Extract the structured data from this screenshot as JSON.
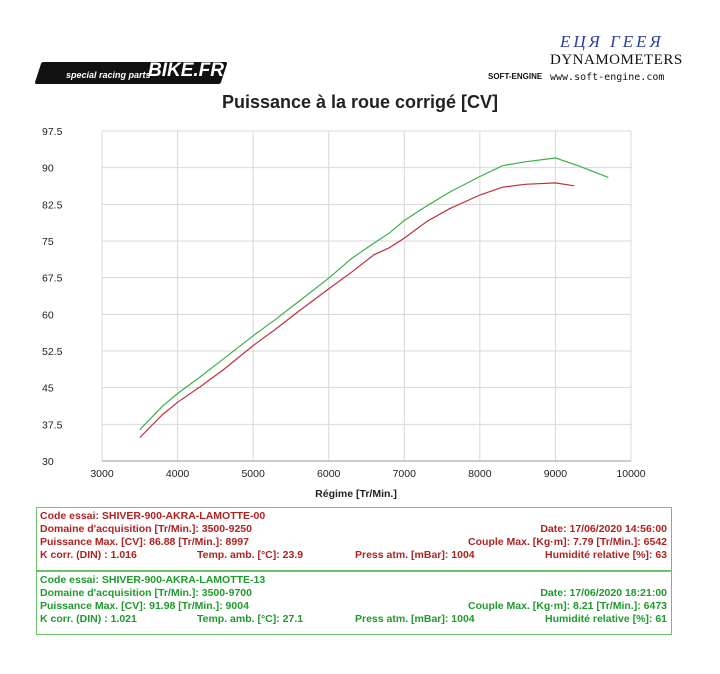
{
  "header": {
    "left_logo_brand": "BIKE.FR",
    "left_logo_tagline": "special racing parts",
    "right_logo_top": "ЕЦЯ ГЕЕЯ",
    "right_logo_name": "DYNAMOMETERS",
    "right_logo_url": "www.soft-engine.com",
    "right_logo_small": "SOFT-ENGINE"
  },
  "chart_data": {
    "type": "line",
    "title": "Puissance à la roue corrigé [CV]",
    "xlabel": "Régime [Tr/Min.]",
    "ylabel": "",
    "xlim": [
      3000,
      10000
    ],
    "ylim": [
      30,
      97.5
    ],
    "xticks": [
      3000,
      4000,
      5000,
      6000,
      7000,
      8000,
      9000,
      10000
    ],
    "yticks": [
      30,
      37.5,
      45,
      52.5,
      60,
      67.5,
      75,
      82.5,
      90,
      97.5
    ],
    "grid": true,
    "series": [
      {
        "color": "#c0303a",
        "x": [
          3500,
          3800,
          4000,
          4300,
          4600,
          5000,
          5300,
          5600,
          6000,
          6300,
          6600,
          6800,
          7000,
          7300,
          7600,
          8000,
          8300,
          8600,
          8997,
          9250
        ],
        "y": [
          34.8,
          39.5,
          42.0,
          45.2,
          48.6,
          53.6,
          57.0,
          60.6,
          65.2,
          68.6,
          72.2,
          73.6,
          75.6,
          79.0,
          81.6,
          84.4,
          86.0,
          86.6,
          86.88,
          86.3
        ]
      },
      {
        "color": "#3cb04a",
        "x": [
          3500,
          3800,
          4000,
          4300,
          4600,
          5000,
          5300,
          5600,
          6000,
          6300,
          6600,
          6800,
          7000,
          7300,
          7600,
          8000,
          8300,
          8600,
          9004,
          9300,
          9700
        ],
        "y": [
          36.4,
          41.2,
          43.8,
          47.2,
          50.8,
          55.6,
          59.0,
          62.6,
          67.4,
          71.4,
          74.6,
          76.6,
          79.2,
          82.2,
          85.0,
          88.2,
          90.4,
          91.2,
          91.98,
          90.4,
          88.0
        ]
      }
    ]
  },
  "run1": {
    "code": "Code essai: SHIVER-900-AKRA-LAMOTTE-00",
    "domain": "Domaine d'acquisition [Tr/Min.]: 3500-9250",
    "date": "Date: 17/06/2020   14:56:00",
    "pmax": "Puissance Max. [CV]: 86.88   [Tr/Min.]: 8997",
    "couple": "Couple Max. [Kg·m]: 7.79   [Tr/Min.]: 6542",
    "kcorr": "K corr. (DIN) : 1.016",
    "temp": "Temp. amb. [°C]: 23.9",
    "press": "Press atm. [mBar]: 1004",
    "hum": "Humidité relative [%]: 63"
  },
  "run2": {
    "code": "Code essai: SHIVER-900-AKRA-LAMOTTE-13",
    "domain": "Domaine d'acquisition [Tr/Min.]: 3500-9700",
    "date": "Date: 17/06/2020   18:21:00",
    "pmax": "Puissance Max. [CV]: 91.98   [Tr/Min.]: 9004",
    "couple": "Couple Max. [Kg·m]: 8.21   [Tr/Min.]: 6473",
    "kcorr": "K corr. (DIN) : 1.021",
    "temp": "Temp. amb. [°C]: 27.1",
    "press": "Press atm. [mBar]: 1004",
    "hum": "Humidité relative [%]: 61"
  }
}
